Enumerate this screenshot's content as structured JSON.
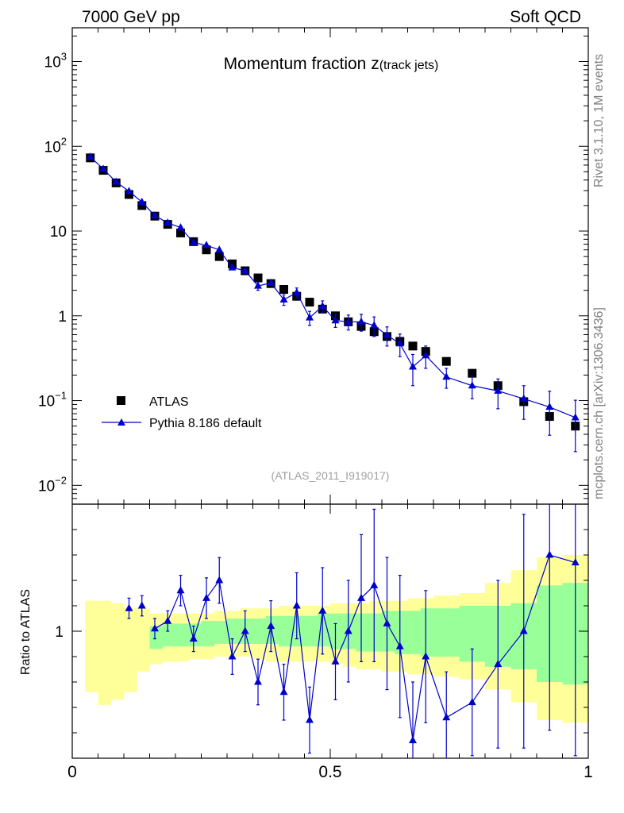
{
  "header": {
    "left": "7000 GeV pp",
    "right": "Soft QCD"
  },
  "side_labels": {
    "rivet": "Rivet 3.1.10,  1M events",
    "mcplots": "mcplots.cern.ch [arXiv:1306.3436]"
  },
  "chart_data": {
    "type": "scatter",
    "title_main": "Momentum fraction ",
    "title_z": "z",
    "title_sub": "(track jets)",
    "analysis_id": "(ATLAS_2011_I919017)",
    "xlim": [
      0,
      1
    ],
    "ylim": [
      0.006,
      2500
    ],
    "yscale": "log",
    "x_ticks": [
      {
        "v": 0,
        "label": "0"
      },
      {
        "v": 0.5,
        "label": "0.5"
      },
      {
        "v": 1,
        "label": "1"
      }
    ],
    "y_ticks": [
      {
        "v": 0.01,
        "base": "10",
        "exp": "−2"
      },
      {
        "v": 0.1,
        "base": "10",
        "exp": "−1"
      },
      {
        "v": 1,
        "base": "1",
        "exp": ""
      },
      {
        "v": 10,
        "base": "10",
        "exp": ""
      },
      {
        "v": 100,
        "base": "10",
        "exp": "2"
      },
      {
        "v": 1000,
        "base": "10",
        "exp": "3"
      }
    ],
    "ratio": {
      "ylabel": "Ratio to ATLAS",
      "ylim": [
        0.5,
        1.5
      ],
      "y_ticks": [
        {
          "v": 1,
          "label": "1"
        }
      ]
    },
    "series": [
      {
        "name": "ATLAS",
        "marker": "square",
        "color": "#000000",
        "x": [
          0.035,
          0.06,
          0.085,
          0.11,
          0.135,
          0.16,
          0.185,
          0.21,
          0.235,
          0.26,
          0.285,
          0.31,
          0.335,
          0.36,
          0.385,
          0.41,
          0.435,
          0.46,
          0.485,
          0.51,
          0.535,
          0.56,
          0.585,
          0.61,
          0.635,
          0.66,
          0.685,
          0.725,
          0.775,
          0.825,
          0.875,
          0.925,
          0.975
        ],
        "y": [
          73,
          52,
          37,
          27,
          20,
          15,
          12,
          9.5,
          7.5,
          6,
          5,
          4.1,
          3.4,
          2.8,
          2.4,
          2.05,
          1.7,
          1.45,
          1.2,
          1.0,
          0.85,
          0.75,
          0.65,
          0.57,
          0.5,
          0.44,
          0.38,
          0.29,
          0.21,
          0.15,
          0.097,
          0.065,
          0.05
        ]
      },
      {
        "name": "Pythia 8.186 default",
        "marker": "triangle",
        "color": "#0000cc",
        "x": [
          0.035,
          0.06,
          0.085,
          0.11,
          0.135,
          0.16,
          0.185,
          0.21,
          0.235,
          0.26,
          0.285,
          0.31,
          0.335,
          0.36,
          0.385,
          0.41,
          0.435,
          0.46,
          0.485,
          0.51,
          0.535,
          0.56,
          0.585,
          0.61,
          0.635,
          0.66,
          0.685,
          0.725,
          0.775,
          0.825,
          0.875,
          0.925,
          0.975
        ],
        "y": [
          75,
          54,
          38,
          29.5,
          22,
          15.2,
          12.5,
          11,
          7.3,
          6.8,
          6.0,
          3.7,
          3.4,
          2.25,
          2.45,
          1.55,
          1.88,
          0.95,
          1.3,
          0.88,
          0.85,
          0.85,
          0.77,
          0.59,
          0.47,
          0.25,
          0.34,
          0.19,
          0.15,
          0.13,
          0.105,
          0.084,
          0.063
        ],
        "yerr": [
          2,
          1.5,
          1,
          1,
          0.8,
          0.6,
          0.5,
          0.6,
          0.4,
          0.5,
          0.5,
          0.3,
          0.3,
          0.25,
          0.25,
          0.22,
          0.25,
          0.18,
          0.2,
          0.15,
          0.17,
          0.19,
          0.2,
          0.15,
          0.14,
          0.1,
          0.1,
          0.05,
          0.045,
          0.05,
          0.045,
          0.045,
          0.038
        ],
        "ratio": [
          1.03,
          1.04,
          1.03,
          1.09,
          1.1,
          1.01,
          1.04,
          1.16,
          0.97,
          1.13,
          1.2,
          0.9,
          1.0,
          0.8,
          1.02,
          0.76,
          1.1,
          0.65,
          1.08,
          0.88,
          1.0,
          1.13,
          1.18,
          1.03,
          0.94,
          0.57,
          0.9,
          0.66,
          0.72,
          0.87,
          1.0,
          1.3,
          1.27
        ],
        "ratio_err": [
          0.03,
          0.03,
          0.03,
          0.04,
          0.04,
          0.04,
          0.04,
          0.06,
          0.05,
          0.08,
          0.09,
          0.07,
          0.08,
          0.09,
          0.1,
          0.11,
          0.13,
          0.13,
          0.17,
          0.15,
          0.2,
          0.25,
          0.3,
          0.26,
          0.28,
          0.23,
          0.26,
          0.18,
          0.21,
          0.33,
          0.46,
          0.69,
          0.76
        ]
      }
    ],
    "uncertainty_bands": {
      "x_edges": [
        0.025,
        0.05,
        0.075,
        0.1,
        0.125,
        0.15,
        0.175,
        0.2,
        0.225,
        0.25,
        0.275,
        0.3,
        0.325,
        0.35,
        0.375,
        0.4,
        0.425,
        0.45,
        0.475,
        0.5,
        0.525,
        0.55,
        0.575,
        0.6,
        0.625,
        0.65,
        0.675,
        0.7,
        0.75,
        0.8,
        0.85,
        0.9,
        0.95,
        1.0
      ],
      "outer_color": "#ffff99",
      "inner_color": "#99ff99",
      "outer": [
        [
          0.76,
          1.12
        ],
        [
          0.71,
          1.12
        ],
        [
          0.73,
          1.11
        ],
        [
          0.76,
          1.09
        ],
        [
          0.84,
          1.09
        ],
        [
          0.87,
          1.07
        ],
        [
          0.88,
          1.07
        ],
        [
          0.88,
          1.07
        ],
        [
          0.89,
          1.07
        ],
        [
          0.89,
          1.07
        ],
        [
          0.9,
          1.08
        ],
        [
          0.9,
          1.08
        ],
        [
          0.9,
          1.09
        ],
        [
          0.89,
          1.09
        ],
        [
          0.88,
          1.09
        ],
        [
          0.88,
          1.1
        ],
        [
          0.88,
          1.1
        ],
        [
          0.88,
          1.1
        ],
        [
          0.88,
          1.1
        ],
        [
          0.87,
          1.11
        ],
        [
          0.86,
          1.11
        ],
        [
          0.85,
          1.11
        ],
        [
          0.85,
          1.12
        ],
        [
          0.84,
          1.12
        ],
        [
          0.84,
          1.12
        ],
        [
          0.83,
          1.13
        ],
        [
          0.83,
          1.13
        ],
        [
          0.82,
          1.14
        ],
        [
          0.81,
          1.15
        ],
        [
          0.77,
          1.19
        ],
        [
          0.72,
          1.24
        ],
        [
          0.65,
          1.29
        ],
        [
          0.64,
          1.3
        ]
      ],
      "inner": [
        null,
        null,
        null,
        null,
        null,
        [
          0.93,
          1.02
        ],
        [
          0.94,
          1.03
        ],
        [
          0.94,
          1.03
        ],
        [
          0.94,
          1.03
        ],
        [
          0.94,
          1.04
        ],
        [
          0.95,
          1.04
        ],
        [
          0.95,
          1.05
        ],
        [
          0.95,
          1.05
        ],
        [
          0.95,
          1.05
        ],
        [
          0.95,
          1.06
        ],
        [
          0.94,
          1.06
        ],
        [
          0.94,
          1.06
        ],
        [
          0.94,
          1.06
        ],
        [
          0.94,
          1.07
        ],
        [
          0.93,
          1.07
        ],
        [
          0.93,
          1.07
        ],
        [
          0.92,
          1.07
        ],
        [
          0.92,
          1.07
        ],
        [
          0.92,
          1.08
        ],
        [
          0.91,
          1.08
        ],
        [
          0.91,
          1.08
        ],
        [
          0.9,
          1.09
        ],
        [
          0.9,
          1.09
        ],
        [
          0.88,
          1.1
        ],
        [
          0.86,
          1.1
        ],
        [
          0.85,
          1.11
        ],
        [
          0.8,
          1.18
        ],
        [
          0.79,
          1.19
        ]
      ]
    }
  }
}
